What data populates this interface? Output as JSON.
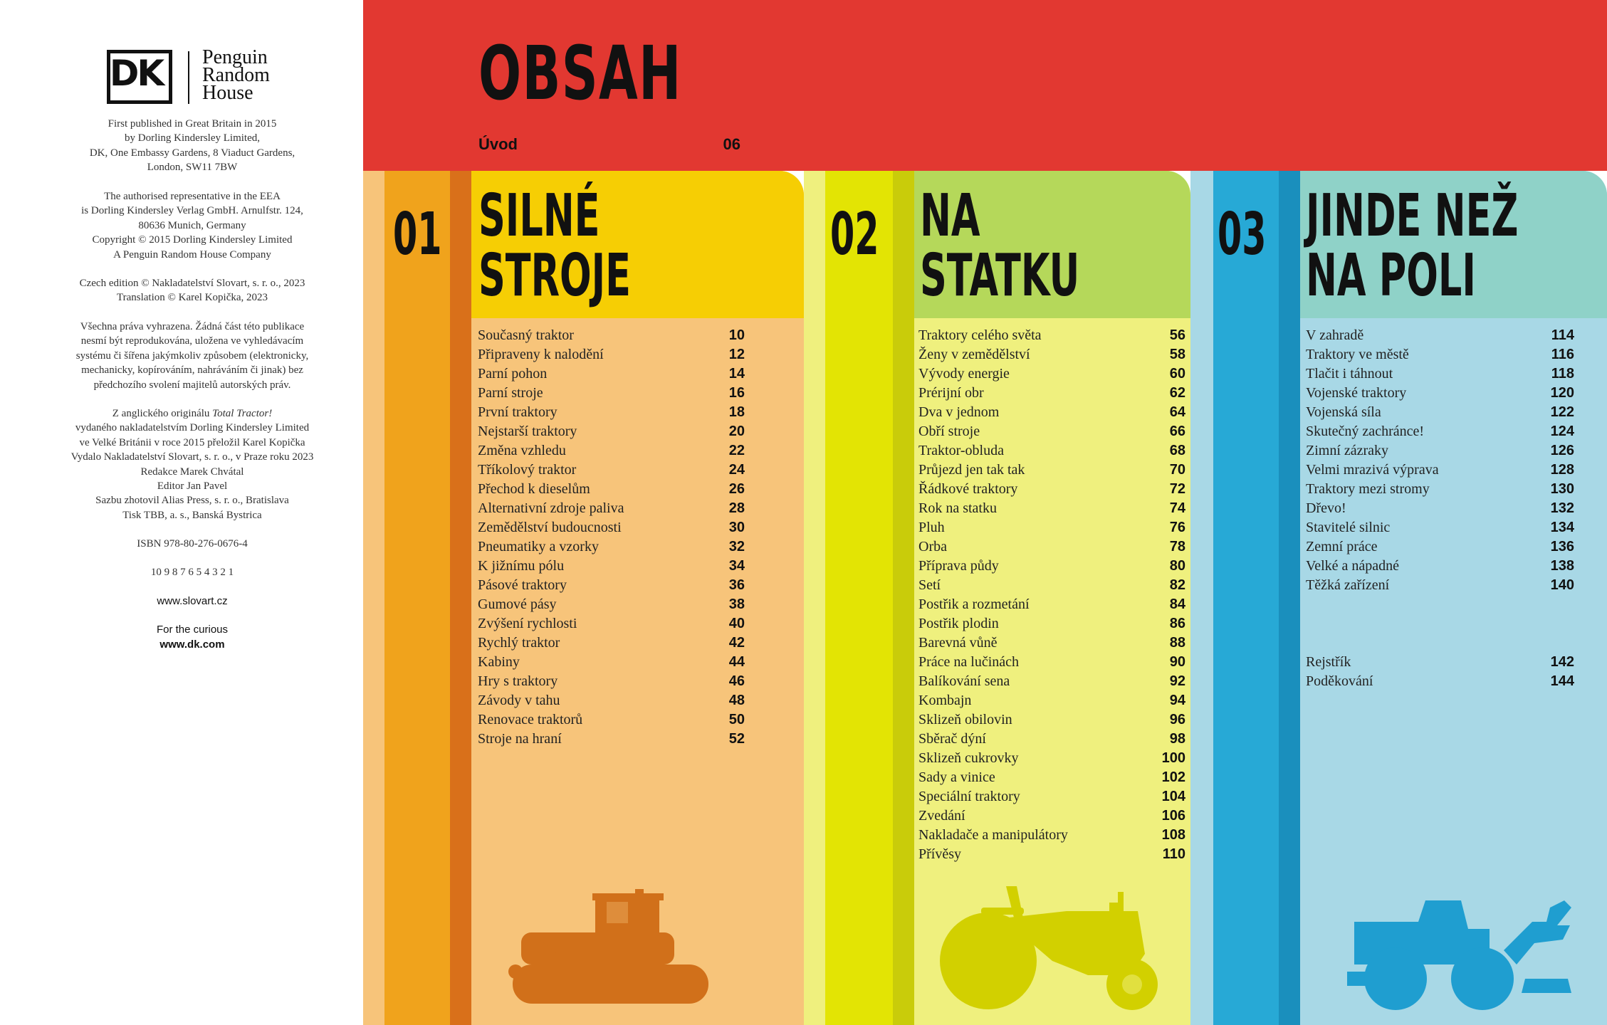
{
  "imprint": {
    "logo": {
      "mark": "DK",
      "publisher_lines": [
        "Penguin",
        "Random",
        "House"
      ]
    },
    "block1": [
      "First published in Great Britain in 2015",
      "by Dorling Kindersley Limited,",
      "DK, One Embassy Gardens, 8 Viaduct Gardens,",
      "London, SW11 7BW"
    ],
    "block2": [
      "The authorised representative in the EEA",
      "is Dorling Kindersley Verlag GmbH. Arnulfstr. 124,",
      "80636 Munich, Germany",
      "Copyright © 2015 Dorling Kindersley Limited",
      "A Penguin Random House Company"
    ],
    "block3": [
      "Czech edition © Nakladatelství Slovart, s. r. o., 2023",
      "Translation © Karel Kopička, 2023"
    ],
    "block4": [
      "Všechna práva vyhrazena. Žádná část této publikace",
      "nesmí být reprodukována, uložena ve vyhledávacím",
      "systému či šířena jakýmkoliv způsobem (elektronicky,",
      "mechanicky, kopírováním, nahráváním či jinak) bez",
      "předchozího svolení majitelů autorských práv."
    ],
    "original_prefix": "Z anglického originálu ",
    "original_title": "Total Tractor!",
    "block5": [
      "vydaného nakladatelstvím Dorling Kindersley Limited",
      "ve Velké Británii v roce 2015 přeložil Karel Kopička",
      "Vydalo Nakladatelství Slovart, s. r. o., v Praze roku 2023",
      "Redakce Marek Chvátal",
      "Editor Jan Pavel",
      "Sazbu zhotovil Alias Press, s. r. o., Bratislava",
      "Tisk TBB, a. s., Banská Bystrica"
    ],
    "isbn": "ISBN 978-80-276-0676-4",
    "print_line": "10 9 8 7 6 5 4 3 2 1",
    "website": "www.slovart.cz",
    "curious": "For the curious",
    "dk_url": "www.dk.com"
  },
  "header": {
    "title": "OBSAH",
    "intro": {
      "title": "Úvod",
      "page": "06"
    }
  },
  "sections": [
    {
      "number": "01",
      "title_lines": [
        "SILNÉ",
        "STROJE"
      ],
      "entries": [
        {
          "title": "Současný traktor",
          "page": "10"
        },
        {
          "title": "Připraveny k nalodění",
          "page": "12"
        },
        {
          "title": "Parní pohon",
          "page": "14"
        },
        {
          "title": "Parní stroje",
          "page": "16"
        },
        {
          "title": "První traktory",
          "page": "18"
        },
        {
          "title": "Nejstarší traktory",
          "page": "20"
        },
        {
          "title": "Změna vzhledu",
          "page": "22"
        },
        {
          "title": "Tříkolový traktor",
          "page": "24"
        },
        {
          "title": "Přechod k dieselům",
          "page": "26"
        },
        {
          "title": "Alternativní zdroje paliva",
          "page": "28"
        },
        {
          "title": "Zemědělství budoucnosti",
          "page": "30"
        },
        {
          "title": "Pneumatiky a vzorky",
          "page": "32"
        },
        {
          "title": "K jižnímu pólu",
          "page": "34"
        },
        {
          "title": "Pásové traktory",
          "page": "36"
        },
        {
          "title": "Gumové pásy",
          "page": "38"
        },
        {
          "title": "Zvýšení rychlosti",
          "page": "40"
        },
        {
          "title": "Rychlý traktor",
          "page": "42"
        },
        {
          "title": "Kabiny",
          "page": "44"
        },
        {
          "title": "Hry s traktory",
          "page": "46"
        },
        {
          "title": "Závody v tahu",
          "page": "48"
        },
        {
          "title": "Renovace traktorů",
          "page": "50"
        },
        {
          "title": "Stroje na hraní",
          "page": "52"
        }
      ]
    },
    {
      "number": "02",
      "title_lines": [
        "NA",
        "STATKU"
      ],
      "entries": [
        {
          "title": "Traktory celého světa",
          "page": "56"
        },
        {
          "title": "Ženy v zemědělství",
          "page": "58"
        },
        {
          "title": "Vývody energie",
          "page": "60"
        },
        {
          "title": "Prérijní obr",
          "page": "62"
        },
        {
          "title": "Dva v jednom",
          "page": "64"
        },
        {
          "title": "Obří stroje",
          "page": "66"
        },
        {
          "title": "Traktor-obluda",
          "page": "68"
        },
        {
          "title": "Průjezd jen tak tak",
          "page": "70"
        },
        {
          "title": "Řádkové traktory",
          "page": "72"
        },
        {
          "title": "Rok na statku",
          "page": "74"
        },
        {
          "title": "Pluh",
          "page": "76"
        },
        {
          "title": "Orba",
          "page": "78"
        },
        {
          "title": "Příprava půdy",
          "page": "80"
        },
        {
          "title": "Setí",
          "page": "82"
        },
        {
          "title": "Postřik a rozmetání",
          "page": "84"
        },
        {
          "title": "Postřik plodin",
          "page": "86"
        },
        {
          "title": "Barevná vůně",
          "page": "88"
        },
        {
          "title": "Práce na lučinách",
          "page": "90"
        },
        {
          "title": "Balíkování sena",
          "page": "92"
        },
        {
          "title": "Kombajn",
          "page": "94"
        },
        {
          "title": "Sklizeň obilovin",
          "page": "96"
        },
        {
          "title": "Sběrač dýní",
          "page": "98"
        },
        {
          "title": "Sklizeň cukrovky",
          "page": "100"
        },
        {
          "title": "Sady a vinice",
          "page": "102"
        },
        {
          "title": "Speciální traktory",
          "page": "104"
        },
        {
          "title": "Zvedání",
          "page": "106"
        },
        {
          "title": "Nakladače a manipulátory",
          "page": "108"
        },
        {
          "title": "Přívěsy",
          "page": "110"
        }
      ]
    },
    {
      "number": "03",
      "title_lines": [
        "JINDE NEŽ",
        "NA POLI"
      ],
      "entries": [
        {
          "title": "V zahradě",
          "page": "114"
        },
        {
          "title": "Traktory ve městě",
          "page": "116"
        },
        {
          "title": "Tlačit i táhnout",
          "page": "118"
        },
        {
          "title": "Vojenské traktory",
          "page": "120"
        },
        {
          "title": "Vojenská síla",
          "page": "122"
        },
        {
          "title": "Skutečný zachránce!",
          "page": "124"
        },
        {
          "title": "Zimní zázraky",
          "page": "126"
        },
        {
          "title": "Velmi mrazivá výprava",
          "page": "128"
        },
        {
          "title": "Traktory mezi stromy",
          "page": "130"
        },
        {
          "title": "Dřevo!",
          "page": "132"
        },
        {
          "title": "Stavitelé silnic",
          "page": "134"
        },
        {
          "title": "Zemní práce",
          "page": "136"
        },
        {
          "title": "Velké a nápadné",
          "page": "138"
        },
        {
          "title": "Těžká zařízení",
          "page": "140"
        }
      ],
      "back_matter": [
        {
          "title": "Rejstřík",
          "page": "142"
        },
        {
          "title": "Poděkování",
          "page": "144"
        }
      ]
    }
  ],
  "colors": {
    "header_red": "#e23831",
    "section1": {
      "light": "#f7c47a",
      "mid": "#f0a31c",
      "dark": "#d9701a",
      "head": "#f6ce04",
      "silhouette": "#d1701a"
    },
    "section2": {
      "light": "#eff07e",
      "mid": "#e3e404",
      "dark": "#c9cc0a",
      "head": "#b5d85a",
      "silhouette": "#d2d000"
    },
    "section3": {
      "light": "#a8d8e6",
      "mid": "#27a9d6",
      "dark": "#1a8fbd",
      "head": "#8fd2c8",
      "silhouette": "#1f9ed0"
    }
  },
  "icons": [
    "crawler-tractor-silhouette",
    "vintage-tractor-silhouette",
    "loader-tractor-silhouette"
  ]
}
